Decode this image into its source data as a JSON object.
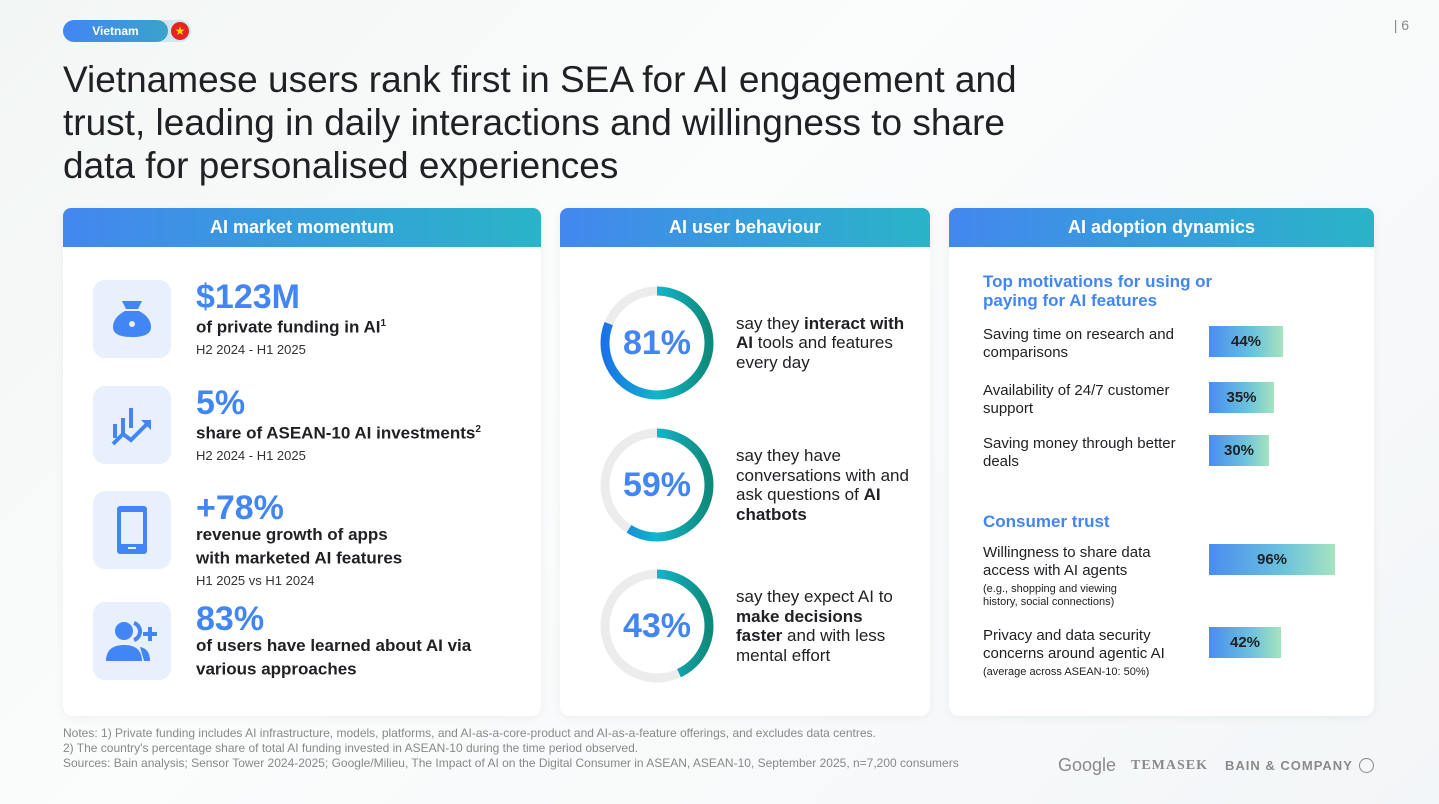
{
  "badge": {
    "label": "Vietnam",
    "flag_icon": "vietnam-flag-icon"
  },
  "page_number": "| 6",
  "title": "Vietnamese users rank first in SEA for AI engagement and trust, leading in daily interactions and willingness to share data for personalised experiences",
  "colors": {
    "accent": "#4285f4",
    "header_start": "#4387ef",
    "header_end": "#2ab4c8"
  },
  "momentum": {
    "header": "AI market momentum",
    "stats": [
      {
        "icon": "money-bag-icon",
        "value": "$123M",
        "desc": "of private funding in AI",
        "sup": "1",
        "sub": "H2 2024 - H1 2025"
      },
      {
        "icon": "growth-chart-icon",
        "value": "5%",
        "desc": "share of ASEAN-10 AI investments",
        "sup": "2",
        "sub": "H2 2024 - H1 2025"
      },
      {
        "icon": "smartphone-icon",
        "value": "+78%",
        "desc": "revenue growth of apps with marketed AI features",
        "sup": "",
        "sub": "H1 2025 vs H1 2024"
      },
      {
        "icon": "add-users-icon",
        "value": "83%",
        "desc": "of users have learned about AI via various approaches",
        "sup": "",
        "sub": ""
      }
    ]
  },
  "behaviour": {
    "header": "AI user behaviour",
    "items": [
      {
        "value": 81,
        "label": "81%",
        "parts": [
          [
            "say they ",
            false
          ],
          [
            "interact with AI",
            true
          ],
          [
            " tools and features every day",
            false
          ]
        ]
      },
      {
        "value": 59,
        "label": "59%",
        "parts": [
          [
            "say they have conversations with and ask questions of ",
            false
          ],
          [
            "AI chatbots",
            true
          ]
        ]
      },
      {
        "value": 43,
        "label": "43%",
        "parts": [
          [
            "say they expect AI to ",
            false
          ],
          [
            "make decisions faster",
            true
          ],
          [
            " and with less mental effort",
            false
          ]
        ]
      }
    ]
  },
  "adoption": {
    "header": "AI adoption dynamics",
    "motivations_title": "Top motivations for using or paying for AI features",
    "motivations": [
      {
        "label": "Saving time on research and comparisons",
        "value": 44,
        "display": "44%"
      },
      {
        "label": "Availability of 24/7 customer support",
        "value": 35,
        "display": "35%"
      },
      {
        "label": "Saving money through better deals",
        "value": 30,
        "display": "30%"
      }
    ],
    "trust_title": "Consumer trust",
    "trust": [
      {
        "label": "Willingness to share data access with AI agents",
        "note": "(e.g., shopping and viewing history, social connections)",
        "value": 96,
        "display": "96%"
      },
      {
        "label": "Privacy and data security concerns around agentic AI",
        "note": "(average across ASEAN-10: 50%)",
        "value": 42,
        "display": "42%"
      }
    ]
  },
  "notes": [
    "Notes: 1) Private funding includes AI infrastructure, models, platforms, and AI-as-a-core-product and AI-as-a-feature offerings, and excludes data centres.",
    "2) The country's percentage share of total AI funding invested in ASEAN-10 during the time period observed.",
    "Sources: Bain analysis; Sensor Tower 2024-2025; Google/Milieu, The Impact of AI on the Digital Consumer in ASEAN, ASEAN-10, September 2025, n=7,200 consumers"
  ],
  "logos": {
    "google": "Google",
    "temasek": "TEMASEK",
    "bain": "BAIN & COMPANY"
  }
}
